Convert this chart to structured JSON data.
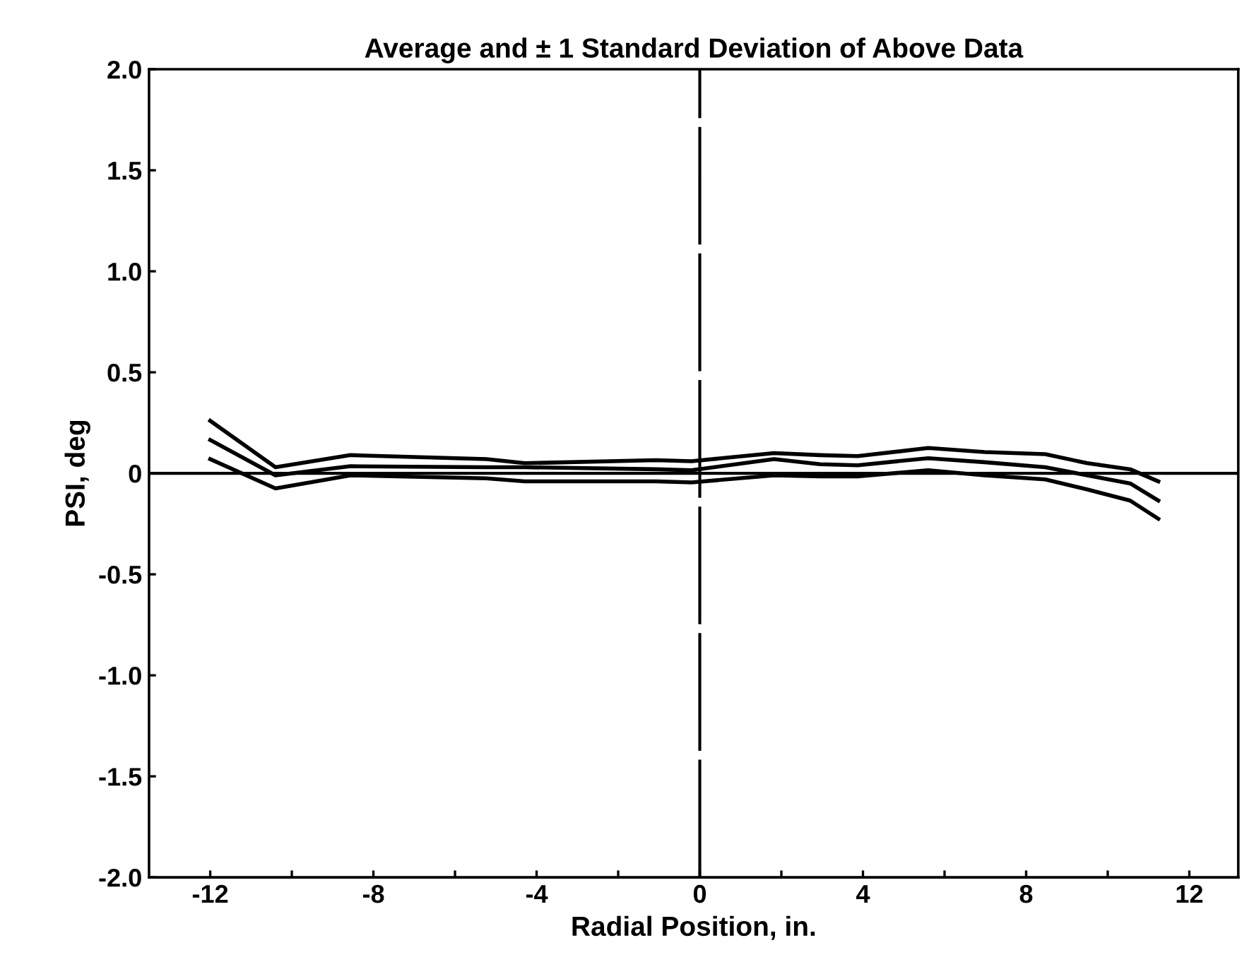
{
  "chart_data": {
    "type": "line",
    "title": "Average and ± 1 Standard Deviation of Above Data",
    "xlabel": "Radial Position, in.",
    "ylabel": "PSI, deg",
    "xlim": [
      -13.5,
      13.2
    ],
    "ylim": [
      -2.0,
      2.0
    ],
    "xticks": [
      -12,
      {
        "value": -10,
        "label": null
      },
      -8,
      {
        "value": -6,
        "label": null
      },
      -4,
      {
        "value": -2,
        "label": null
      },
      0,
      {
        "value": 2,
        "label": null
      },
      4,
      {
        "value": 6,
        "label": null
      },
      8,
      {
        "value": 10,
        "label": null
      },
      12
    ],
    "yticks": [
      {
        "value": -2,
        "label": "-2.0"
      },
      {
        "value": -1.5,
        "label": "-1.5"
      },
      {
        "value": -1,
        "label": "-1.0"
      },
      {
        "value": -0.5,
        "label": "-0.5"
      },
      0,
      {
        "value": 0.5,
        "label": "0.5"
      },
      {
        "value": 1,
        "label": "1.0"
      },
      {
        "value": 1.5,
        "label": "1.5"
      },
      {
        "value": 2,
        "label": "2.0"
      }
    ],
    "x": [
      -12.0,
      -10.4,
      -8.56,
      -5.23,
      -4.29,
      -1.07,
      -0.2,
      1.82,
      2.95,
      3.87,
      5.6,
      6.98,
      8.47,
      9.5,
      10.55,
      11.24
    ],
    "series": [
      {
        "color": "#000000",
        "values": [
          0.26,
          0.03,
          0.09,
          0.07,
          0.05,
          0.065,
          0.06,
          0.1,
          0.09,
          0.085,
          0.125,
          0.105,
          0.095,
          0.05,
          0.02,
          -0.04
        ]
      },
      {
        "color": "#000000",
        "values": [
          0.165,
          -0.01,
          0.035,
          0.03,
          0.03,
          0.02,
          0.015,
          0.07,
          0.045,
          0.04,
          0.075,
          0.055,
          0.03,
          -0.01,
          -0.05,
          -0.135
        ]
      },
      {
        "color": "#000000",
        "values": [
          0.07,
          -0.075,
          -0.01,
          -0.025,
          -0.04,
          -0.04,
          -0.045,
          -0.01,
          -0.015,
          -0.015,
          0.015,
          -0.01,
          -0.03,
          -0.08,
          -0.135,
          -0.225
        ]
      }
    ],
    "ref_lines": [
      {
        "axis": "y",
        "value": 0,
        "color": "#000000"
      },
      {
        "axis": "x",
        "value": 0,
        "color": "#000000",
        "line_style": "dashed"
      }
    ],
    "grid": false,
    "legend": false,
    "marker": "none",
    "line_style": "solid"
  }
}
